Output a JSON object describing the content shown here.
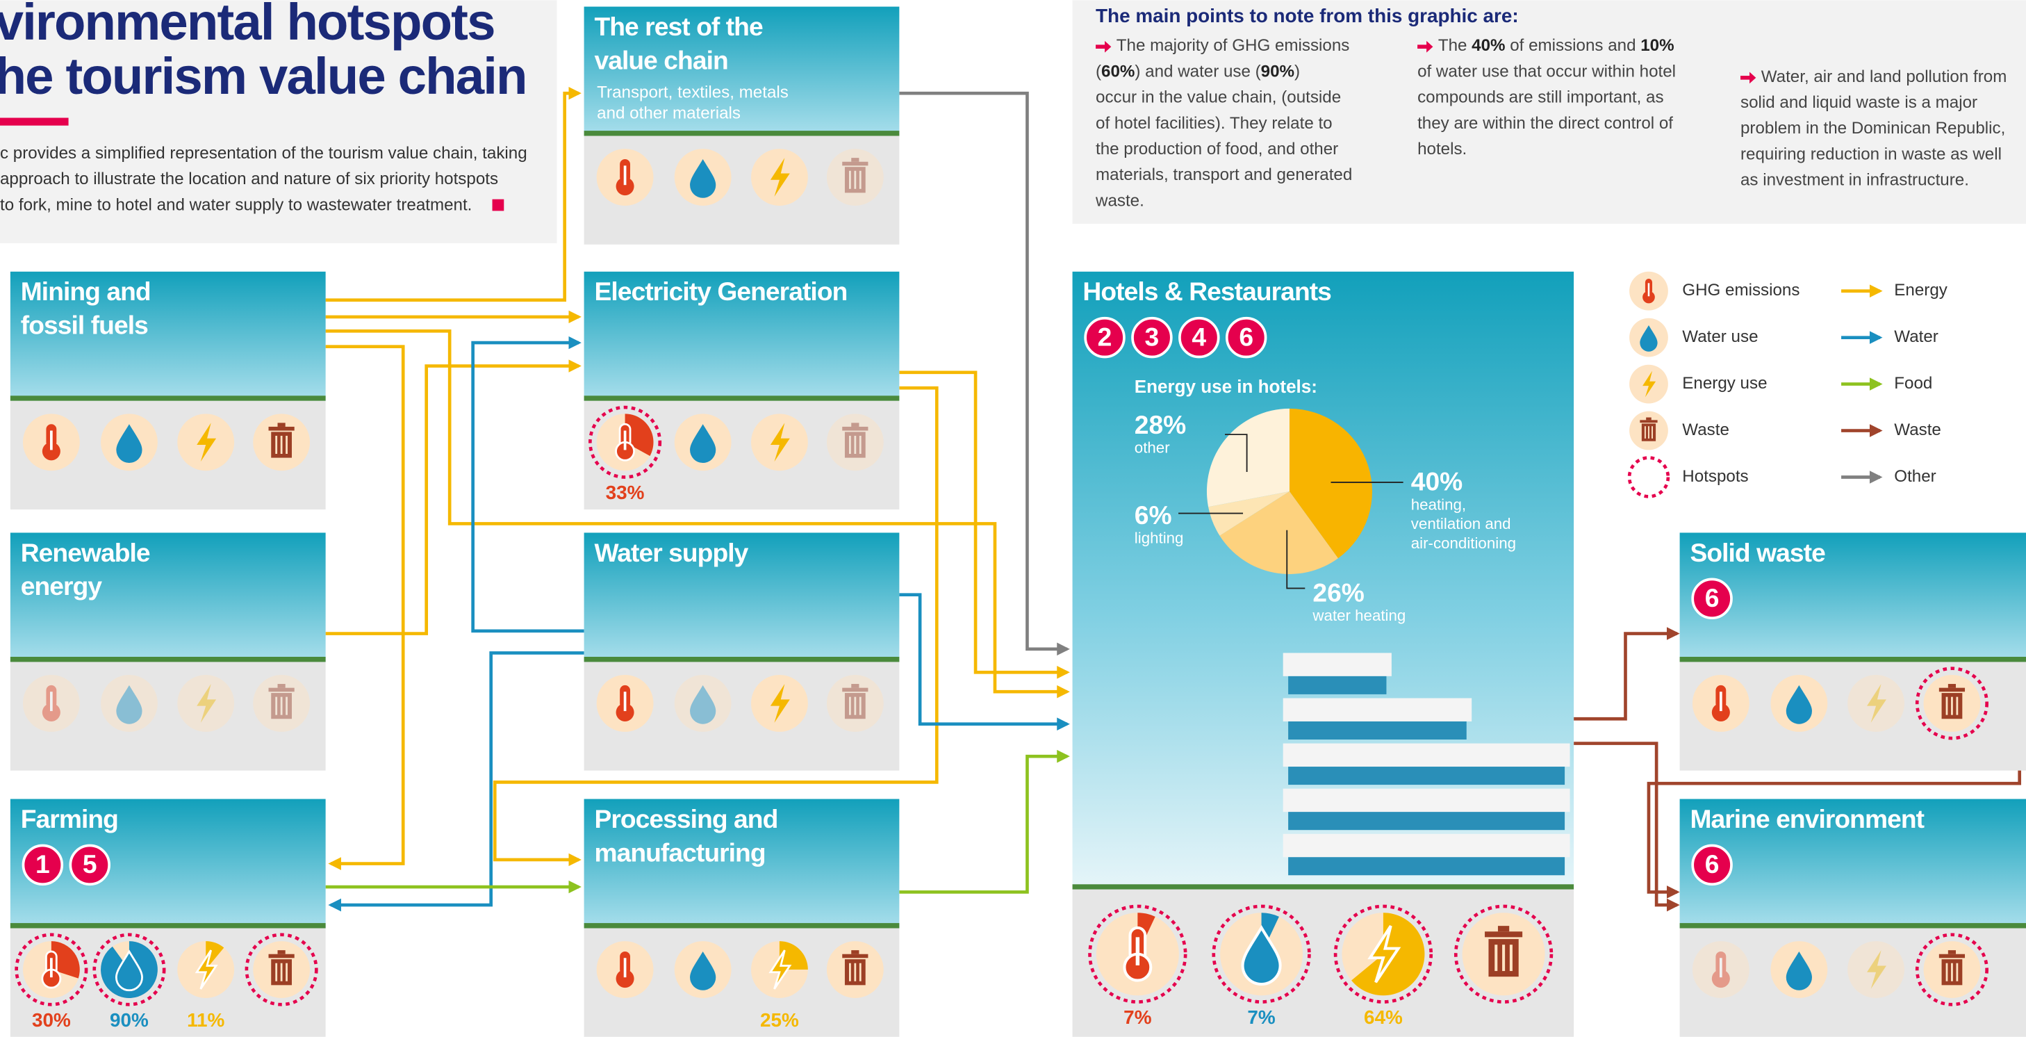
{
  "header": {
    "title": [
      "vironmental hotspots",
      "he tourism value chain"
    ],
    "intro": [
      "c provides a simplified representation of the tourism value chain, taking",
      "approach to illustrate the location and nature of six priority hotspots",
      "to fork, mine to hotel and water supply to wastewater treatment."
    ]
  },
  "notes": {
    "title": "The main points to note from this graphic are:",
    "columns": [
      [
        [
          {
            "t": "The majority of GHG emissions"
          }
        ],
        [
          {
            "t": "("
          },
          {
            "t": "60%",
            "b": true
          },
          {
            "t": ")  and water use ("
          },
          {
            "t": "90%",
            "b": true
          },
          {
            "t": ")"
          }
        ],
        [
          {
            "t": "occur in the value chain, (outside"
          }
        ],
        [
          {
            "t": "of hotel facilities). They relate to"
          }
        ],
        [
          {
            "t": "the production of food, and other"
          }
        ],
        [
          {
            "t": "materials, transport and generated"
          }
        ],
        [
          {
            "t": "waste."
          }
        ]
      ],
      [
        [
          {
            "t": "The "
          },
          {
            "t": "40%",
            "b": true
          },
          {
            "t": " of emissions and "
          },
          {
            "t": "10%",
            "b": true
          }
        ],
        [
          {
            "t": "of water use that occur within hotel"
          }
        ],
        [
          {
            "t": "compounds are still important, as"
          }
        ],
        [
          {
            "t": "they are within the direct control of"
          }
        ],
        [
          {
            "t": "hotels."
          }
        ]
      ],
      [
        [
          {
            "t": "Water, air and land pollution from"
          }
        ],
        [
          {
            "t": "solid and liquid waste is a major"
          }
        ],
        [
          {
            "t": "problem in the Dominican Republic,"
          }
        ],
        [
          {
            "t": "requiring reduction in waste as well"
          }
        ],
        [
          {
            "t": "as investment in infrastructure."
          }
        ]
      ]
    ]
  },
  "boxes": [
    {
      "title": [
        "Mining and",
        "fossil fuels"
      ],
      "icons": [
        {
          "kind": "ghg"
        },
        {
          "kind": "water"
        },
        {
          "kind": "energy"
        },
        {
          "kind": "waste"
        }
      ]
    },
    {
      "title": [
        "Renewable",
        "energy"
      ],
      "icons": [
        {
          "kind": "ghg",
          "faded": true
        },
        {
          "kind": "water",
          "faded": true
        },
        {
          "kind": "energy",
          "faded": true
        },
        {
          "kind": "waste",
          "faded": true
        }
      ]
    },
    {
      "title": [
        "Farming"
      ],
      "hotspots": [
        "1",
        "5"
      ],
      "icons": [
        {
          "kind": "ghg",
          "hotspot": true,
          "value": 30,
          "label": "30%"
        },
        {
          "kind": "water",
          "hotspot": true,
          "value": 90,
          "label": "90%"
        },
        {
          "kind": "energy",
          "value": 11,
          "label": "11%"
        },
        {
          "kind": "waste",
          "hotspot": true
        }
      ]
    },
    {
      "title": [
        "The rest of the",
        "value chain"
      ],
      "subtitle": [
        "Transport, textiles, metals",
        "and other materials"
      ],
      "icons": [
        {
          "kind": "ghg"
        },
        {
          "kind": "water"
        },
        {
          "kind": "energy"
        },
        {
          "kind": "waste",
          "faded": true
        }
      ]
    },
    {
      "title": [
        "Electricity Generation"
      ],
      "icons": [
        {
          "kind": "ghg",
          "hotspot": true,
          "value": 33,
          "label": "33%"
        },
        {
          "kind": "water"
        },
        {
          "kind": "energy"
        },
        {
          "kind": "waste",
          "faded": true
        }
      ]
    },
    {
      "title": [
        "Water supply"
      ],
      "icons": [
        {
          "kind": "ghg"
        },
        {
          "kind": "water",
          "faded": true
        },
        {
          "kind": "energy"
        },
        {
          "kind": "waste",
          "faded": true
        }
      ]
    },
    {
      "title": [
        "Processing and",
        "manufacturing"
      ],
      "icons": [
        {
          "kind": "ghg"
        },
        {
          "kind": "water"
        },
        {
          "kind": "energy",
          "value": 25,
          "label": "25%"
        },
        {
          "kind": "waste"
        }
      ]
    },
    {
      "title": [
        "Hotels & Restaurants"
      ],
      "hotspots": [
        "2",
        "3",
        "4",
        "6"
      ],
      "icons": [
        {
          "kind": "ghg",
          "hotspot": true,
          "value": 7,
          "label": "7%"
        },
        {
          "kind": "water",
          "hotspot": true,
          "value": 7,
          "label": "7%"
        },
        {
          "kind": "energy",
          "hotspot": true,
          "value": 64,
          "label": "64%"
        },
        {
          "kind": "waste",
          "hotspot": true
        }
      ],
      "pie": {
        "title": "Energy use in hotels:",
        "values": [
          40,
          26,
          6,
          28
        ],
        "value_labels": [
          "40%",
          "26%",
          "6%",
          "28%"
        ],
        "labels": [
          [
            "heating,",
            "ventilation and",
            "air-conditioning"
          ],
          [
            "water heating"
          ],
          [
            "lighting"
          ],
          [
            "other"
          ]
        ],
        "colors": [
          "#f8b400",
          "#fdd27e",
          "#fde5b4",
          "#fef2da"
        ]
      }
    },
    {
      "title": [
        "Solid waste"
      ],
      "hotspots": [
        "6"
      ],
      "icons": [
        {
          "kind": "ghg"
        },
        {
          "kind": "water"
        },
        {
          "kind": "energy",
          "faded": true
        },
        {
          "kind": "waste",
          "hotspot": true
        }
      ]
    },
    {
      "title": [
        "Marine environment"
      ],
      "hotspots": [
        "6"
      ],
      "icons": [
        {
          "kind": "ghg",
          "faded": true
        },
        {
          "kind": "water"
        },
        {
          "kind": "energy",
          "faded": true
        },
        {
          "kind": "waste",
          "hotspot": true
        }
      ]
    }
  ],
  "legend": {
    "icons": [
      "GHG emissions",
      "Water use",
      "Energy use",
      "Waste",
      "Hotspots"
    ],
    "arrows": [
      {
        "name": "Energy",
        "color": "#f5b800"
      },
      {
        "name": "Water",
        "color": "#1a8fc0"
      },
      {
        "name": "Food",
        "color": "#8dc21f"
      },
      {
        "name": "Waste",
        "color": "#a0442c"
      },
      {
        "name": "Other",
        "color": "#808080"
      }
    ]
  }
}
